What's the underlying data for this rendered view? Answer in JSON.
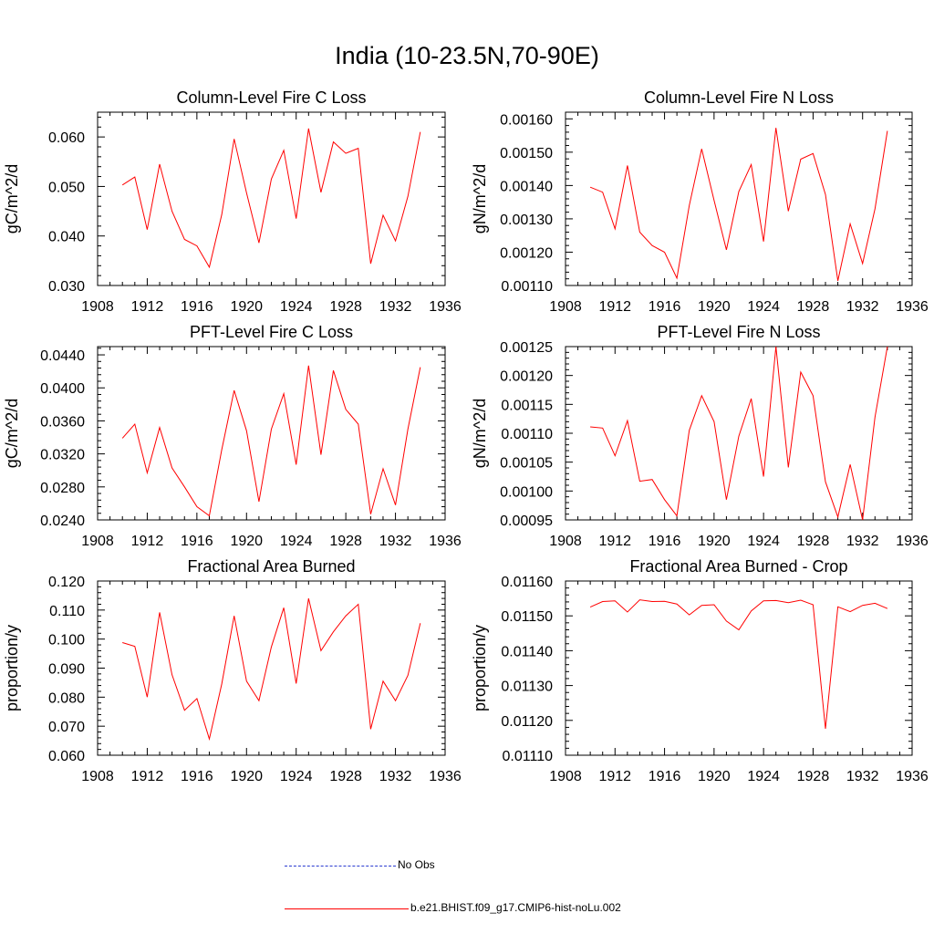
{
  "title": "India (10-23.5N,70-90E)",
  "legend": [
    {
      "label": "No Obs",
      "color": "#2a3bd0",
      "style": "dashed"
    },
    {
      "label": "b.e21.BHIST.f09_g17.CMIP6-hist-noLu.002",
      "color": "#ff0000",
      "style": "solid"
    }
  ],
  "x_ticks": [
    "1908",
    "1912",
    "1916",
    "1920",
    "1924",
    "1928",
    "1932",
    "1936"
  ],
  "chart_data": [
    {
      "type": "line",
      "title": "Column-Level Fire C Loss",
      "ylabel": "gC/m^2/d",
      "xlim": [
        1908,
        1936
      ],
      "ylim": [
        0.03,
        0.065
      ],
      "y_ticks": [
        "0.030",
        "0.040",
        "0.050",
        "0.060"
      ],
      "series": [
        {
          "color": "#ff0000",
          "x": [
            1910,
            1911,
            1912,
            1913,
            1914,
            1915,
            1916,
            1917,
            1918,
            1919,
            1920,
            1921,
            1922,
            1923,
            1924,
            1925,
            1926,
            1927,
            1928,
            1929,
            1930,
            1931,
            1932,
            1933,
            1934
          ],
          "y": [
            0.0503,
            0.0519,
            0.0413,
            0.0545,
            0.045,
            0.0393,
            0.038,
            0.0337,
            0.0443,
            0.0596,
            0.0487,
            0.0386,
            0.0515,
            0.0573,
            0.0435,
            0.0617,
            0.0488,
            0.059,
            0.0567,
            0.0577,
            0.0344,
            0.0442,
            0.039,
            0.048,
            0.061
          ]
        }
      ]
    },
    {
      "type": "line",
      "title": "Column-Level Fire N Loss",
      "ylabel": "gN/m^2/d",
      "xlim": [
        1908,
        1936
      ],
      "ylim": [
        0.0011,
        0.00162
      ],
      "y_ticks": [
        "0.00110",
        "0.00120",
        "0.00130",
        "0.00140",
        "0.00150",
        "0.00160"
      ],
      "series": [
        {
          "color": "#ff0000",
          "x": [
            1910,
            1911,
            1912,
            1913,
            1914,
            1915,
            1916,
            1917,
            1918,
            1919,
            1920,
            1921,
            1922,
            1923,
            1924,
            1925,
            1926,
            1927,
            1928,
            1929,
            1930,
            1931,
            1932,
            1933,
            1934
          ],
          "y": [
            0.001395,
            0.00138,
            0.00127,
            0.00146,
            0.00126,
            0.00122,
            0.0012,
            0.001122,
            0.00134,
            0.00151,
            0.001355,
            0.001207,
            0.001382,
            0.001463,
            0.001232,
            0.001573,
            0.001323,
            0.001479,
            0.001496,
            0.001373,
            0.001114,
            0.001285,
            0.001166,
            0.00133,
            0.001564
          ]
        }
      ]
    },
    {
      "type": "line",
      "title": "PFT-Level Fire C Loss",
      "ylabel": "gC/m^2/d",
      "xlim": [
        1908,
        1936
      ],
      "ylim": [
        0.024,
        0.045
      ],
      "y_ticks": [
        "0.0240",
        "0.0280",
        "0.0320",
        "0.0360",
        "0.0400",
        "0.0440"
      ],
      "series": [
        {
          "color": "#ff0000",
          "x": [
            1910,
            1911,
            1912,
            1913,
            1914,
            1915,
            1916,
            1917,
            1918,
            1919,
            1920,
            1921,
            1922,
            1923,
            1924,
            1925,
            1926,
            1927,
            1928,
            1929,
            1930,
            1931,
            1932,
            1933,
            1934
          ],
          "y": [
            0.0339,
            0.0356,
            0.0297,
            0.0352,
            0.0303,
            0.028,
            0.0256,
            0.0245,
            0.0325,
            0.0397,
            0.0348,
            0.0262,
            0.035,
            0.0393,
            0.0307,
            0.0427,
            0.0319,
            0.0421,
            0.0374,
            0.0356,
            0.0247,
            0.0302,
            0.0258,
            0.035,
            0.0425
          ]
        }
      ]
    },
    {
      "type": "line",
      "title": "PFT-Level Fire N Loss",
      "ylabel": "gN/m^2/d",
      "xlim": [
        1908,
        1936
      ],
      "ylim": [
        0.00095,
        0.00125
      ],
      "y_ticks": [
        "0.00095",
        "0.00100",
        "0.00105",
        "0.00110",
        "0.00115",
        "0.00120",
        "0.00125"
      ],
      "series": [
        {
          "color": "#ff0000",
          "x": [
            1910,
            1911,
            1912,
            1913,
            1914,
            1915,
            1916,
            1917,
            1918,
            1919,
            1920,
            1921,
            1922,
            1923,
            1924,
            1925,
            1926,
            1927,
            1928,
            1929,
            1930,
            1931,
            1932,
            1933,
            1934
          ],
          "y": [
            0.001111,
            0.001109,
            0.001061,
            0.001122,
            0.001017,
            0.00102,
            0.000985,
            0.000957,
            0.001105,
            0.001165,
            0.00112,
            0.000985,
            0.001095,
            0.00116,
            0.001025,
            0.00125,
            0.001041,
            0.001206,
            0.001165,
            0.001016,
            0.000955,
            0.001046,
            0.00095,
            0.001128,
            0.00125
          ]
        }
      ]
    },
    {
      "type": "line",
      "title": "Fractional Area Burned",
      "ylabel": "proportion/y",
      "xlim": [
        1908,
        1936
      ],
      "ylim": [
        0.06,
        0.12
      ],
      "y_ticks": [
        "0.060",
        "0.070",
        "0.080",
        "0.090",
        "0.100",
        "0.110",
        "0.120"
      ],
      "series": [
        {
          "color": "#ff0000",
          "x": [
            1910,
            1911,
            1912,
            1913,
            1914,
            1915,
            1916,
            1917,
            1918,
            1919,
            1920,
            1921,
            1922,
            1923,
            1924,
            1925,
            1926,
            1927,
            1928,
            1929,
            1930,
            1931,
            1932,
            1933,
            1934
          ],
          "y": [
            0.0988,
            0.0975,
            0.08,
            0.1092,
            0.0877,
            0.0755,
            0.0795,
            0.0656,
            0.0845,
            0.108,
            0.0855,
            0.0788,
            0.0973,
            0.1108,
            0.0847,
            0.114,
            0.096,
            0.1025,
            0.108,
            0.112,
            0.069,
            0.0855,
            0.0788,
            0.0875,
            0.1055
          ]
        }
      ]
    },
    {
      "type": "line",
      "title": "Fractional Area Burned - Crop",
      "ylabel": "proportion/y",
      "xlim": [
        1908,
        1936
      ],
      "ylim": [
        0.0111,
        0.0116
      ],
      "y_ticks": [
        "0.01110",
        "0.01120",
        "0.01130",
        "0.01140",
        "0.01150",
        "0.01160"
      ],
      "series": [
        {
          "color": "#ff0000",
          "x": [
            1910,
            1911,
            1912,
            1913,
            1914,
            1915,
            1916,
            1917,
            1918,
            1919,
            1920,
            1921,
            1922,
            1923,
            1924,
            1925,
            1926,
            1927,
            1928,
            1929,
            1930,
            1931,
            1932,
            1933,
            1934
          ],
          "y": [
            0.011525,
            0.011541,
            0.011543,
            0.011511,
            0.011546,
            0.011541,
            0.011542,
            0.011534,
            0.011503,
            0.01153,
            0.011532,
            0.011485,
            0.01146,
            0.011514,
            0.011543,
            0.011544,
            0.011538,
            0.011545,
            0.011532,
            0.011176,
            0.011526,
            0.011512,
            0.01153,
            0.011536,
            0.011521
          ]
        }
      ]
    }
  ]
}
